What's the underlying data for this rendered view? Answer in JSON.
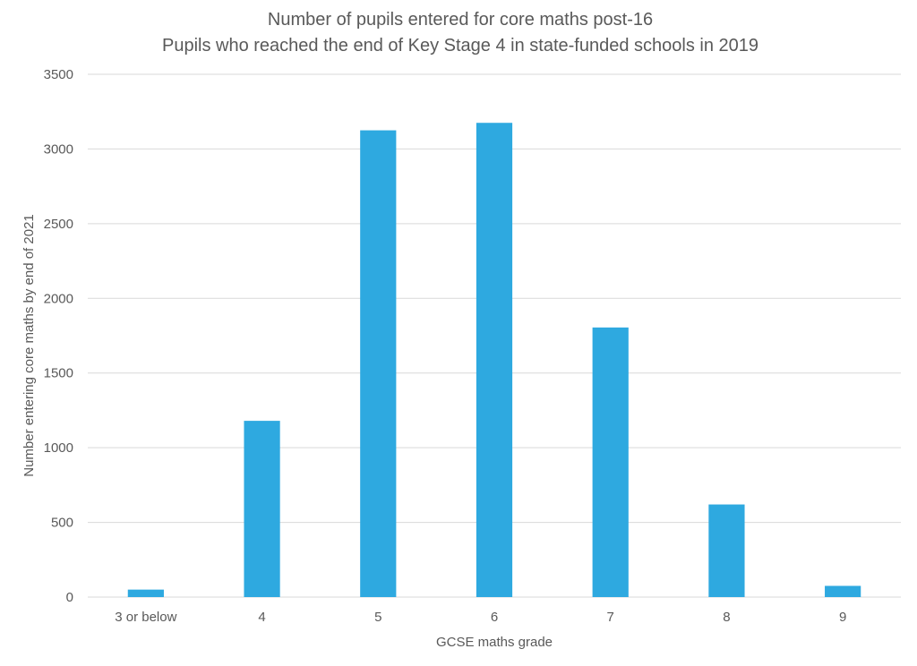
{
  "chart_data": {
    "type": "bar",
    "title": "Number of pupils entered for core maths post-16",
    "subtitle": "Pupils who reached the end of Key Stage 4 in state-funded schools in 2019",
    "xlabel": "GCSE maths grade",
    "ylabel": "Number entering core maths by end of 2021",
    "categories": [
      "3 or below",
      "4",
      "5",
      "6",
      "7",
      "8",
      "9"
    ],
    "values": [
      50,
      1180,
      3125,
      3175,
      1805,
      620,
      75
    ],
    "ylim": [
      0,
      3500
    ],
    "yticks": [
      "0",
      "500",
      "1000",
      "1500",
      "2000",
      "2500",
      "3000",
      "3500"
    ],
    "grid": true,
    "legend": "none",
    "bar_color": "#2ea9e0"
  }
}
